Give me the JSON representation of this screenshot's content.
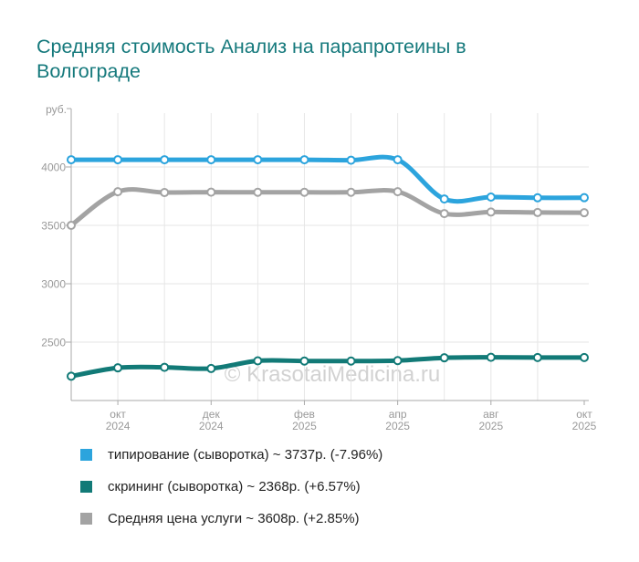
{
  "title": "Средняя стоимость Анализ на парапротеины в Волгограде",
  "watermark": "© KrasotaiMedicina.ru",
  "chart_data": {
    "type": "line",
    "title": "Средняя стоимость Анализ на парапротеины в Волгограде",
    "ylabel_unit": "руб.",
    "grid": true,
    "legend_position": "bottom",
    "ylim": [
      2000,
      4430
    ],
    "y_ticks": [
      4000,
      3500,
      3000,
      2500
    ],
    "point_count": 12,
    "x_ticks": [
      {
        "index": 1,
        "month": "окт",
        "year": "2024"
      },
      {
        "index": 3,
        "month": "дек",
        "year": "2024"
      },
      {
        "index": 5,
        "month": "фев",
        "year": "2025"
      },
      {
        "index": 7,
        "month": "апр",
        "year": "2025"
      },
      {
        "index": 9,
        "month": "авг",
        "year": "2025"
      },
      {
        "index": 11,
        "month": "окт",
        "year": "2025"
      }
    ],
    "series": [
      {
        "name": "типирование (сыворотка)",
        "legend_label": "типирование (сыворотка) ~ 3737р. (-7.96%)",
        "current_price": "3737р.",
        "change": "-7.96%",
        "color": "#2ca4dd",
        "values": [
          4062,
          4062,
          4062,
          4062,
          4062,
          4062,
          4058,
          4062,
          3726,
          3742,
          3736,
          3737
        ]
      },
      {
        "name": "скрининг (сыворотка)",
        "legend_label": "скрининг (сыворотка) ~ 2368р. (+6.57%)",
        "current_price": "2368р.",
        "change": "+6.57%",
        "color": "#127a77",
        "values": [
          2208,
          2280,
          2284,
          2274,
          2340,
          2338,
          2338,
          2342,
          2366,
          2370,
          2368,
          2368
        ]
      },
      {
        "name": "Средняя цена услуги",
        "legend_label": "Средняя цена услуги ~ 3608р. (+2.85%)",
        "current_price": "3608р.",
        "change": "+2.85%",
        "color": "#a3a3a3",
        "values": [
          3500,
          3788,
          3781,
          3784,
          3783,
          3783,
          3783,
          3788,
          3601,
          3614,
          3610,
          3608
        ]
      }
    ]
  }
}
